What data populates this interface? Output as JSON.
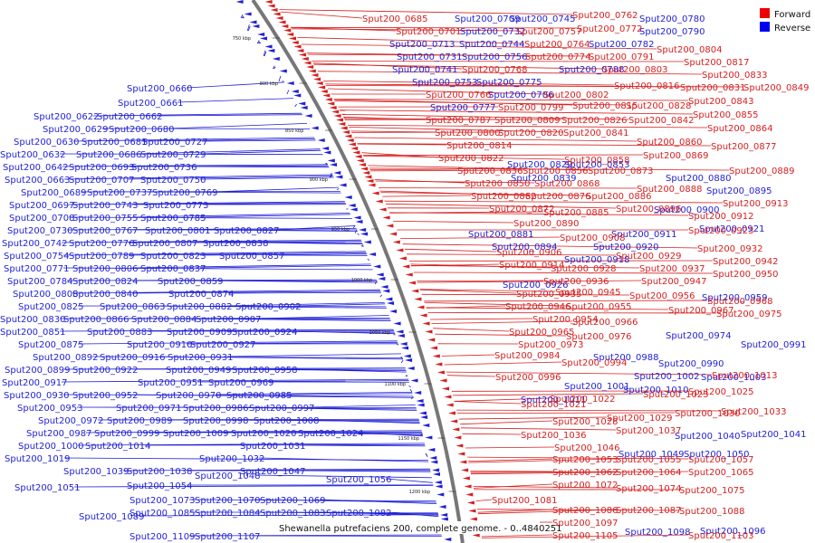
{
  "caption": "Shewanella putrefaciens 200, complete genome. - 0..4840251",
  "legend": [
    {
      "label": "Forward",
      "color": "#ee0000"
    },
    {
      "label": "Reverse",
      "color": "#0000ee"
    }
  ],
  "colors": {
    "forward": "#d61f1f",
    "reverse": "#1f1fd6",
    "backbone": "#888888"
  },
  "ticks": [
    "750 kbp",
    "800 kbp",
    "850 kbp",
    "900 kbp",
    "950 kbp",
    "1000 kbp",
    "1050 kbp",
    "1100 kbp",
    "1150 kbp",
    "1200 kbp"
  ],
  "reverse_labels": [
    [
      "Sput200_0660",
      140,
      101
    ],
    [
      "Sput200_0661",
      130,
      117
    ],
    [
      "Sput200_0622",
      37,
      132
    ],
    [
      "Sput200_0662",
      107,
      132
    ],
    [
      "Sput200_0629",
      47,
      146
    ],
    [
      "Sput200_0680",
      120,
      146
    ],
    [
      "Sput200_0630",
      15,
      160
    ],
    [
      "Sput200_0681",
      90,
      160
    ],
    [
      "Sput200_0727",
      157,
      160
    ],
    [
      "Sput200_0632",
      0,
      174
    ],
    [
      "Sput200_0686",
      84,
      174
    ],
    [
      "Sput200_0729",
      155,
      174
    ],
    [
      "Sput200_0642",
      3,
      188
    ],
    [
      "Sput200_0693",
      76,
      188
    ],
    [
      "Sput200_0736",
      145,
      188
    ],
    [
      "Sput200_0663",
      5,
      202
    ],
    [
      "Sput200_0707",
      76,
      202
    ],
    [
      "Sput200_0750",
      155,
      202
    ],
    [
      "Sput200_0689",
      23,
      216
    ],
    [
      "Sput200_0737",
      96,
      216
    ],
    [
      "Sput200_0769",
      168,
      216
    ],
    [
      "Sput200_0697",
      10,
      230
    ],
    [
      "Sput200_0743",
      80,
      230
    ],
    [
      "Sput200_0773",
      158,
      230
    ],
    [
      "Sput200_0708",
      10,
      244
    ],
    [
      "Sput200_0755",
      80,
      244
    ],
    [
      "Sput200_0785",
      155,
      244
    ],
    [
      "Sput200_0730",
      8,
      258
    ],
    [
      "Sput200_0767",
      80,
      258
    ],
    [
      "Sput200_0801",
      160,
      258
    ],
    [
      "Sput200_0827",
      236,
      258
    ],
    [
      "Sput200_0742",
      2,
      272
    ],
    [
      "Sput200_0776",
      76,
      272
    ],
    [
      "Sput200_0807",
      146,
      272
    ],
    [
      "Sput200_0838",
      224,
      272
    ],
    [
      "Sput200_0754",
      4,
      286
    ],
    [
      "Sput200_0789",
      76,
      286
    ],
    [
      "Sput200_0823",
      155,
      286
    ],
    [
      "Sput200_0857",
      242,
      286
    ],
    [
      "Sput200_0771",
      4,
      300
    ],
    [
      "Sput200_0806",
      80,
      300
    ],
    [
      "Sput200_0837",
      155,
      300
    ],
    [
      "Sput200_0784",
      8,
      314
    ],
    [
      "Sput200_0824",
      80,
      314
    ],
    [
      "Sput200_0859",
      174,
      314
    ],
    [
      "Sput200_0808",
      14,
      328
    ],
    [
      "Sput200_0840",
      80,
      328
    ],
    [
      "Sput200_0874",
      186,
      328
    ],
    [
      "Sput200_0825",
      20,
      342
    ],
    [
      "Sput200_0863",
      110,
      342
    ],
    [
      "Sput200_0882",
      184,
      342
    ],
    [
      "Sput200_0902",
      260,
      342
    ],
    [
      "Sput200_0830",
      0,
      356
    ],
    [
      "Sput200_0866",
      70,
      356
    ],
    [
      "Sput200_0884",
      145,
      356
    ],
    [
      "Sput200_0907",
      216,
      356
    ],
    [
      "Sput200_0851",
      0,
      370
    ],
    [
      "Sput200_0883",
      96,
      370
    ],
    [
      "Sput200_0909",
      184,
      370
    ],
    [
      "Sput200_0924",
      256,
      370
    ],
    [
      "Sput200_0875",
      20,
      384
    ],
    [
      "Sput200_0910",
      140,
      384
    ],
    [
      "Sput200_0927",
      210,
      384
    ],
    [
      "Sput200_0892",
      36,
      398
    ],
    [
      "Sput200_0916",
      110,
      398
    ],
    [
      "Sput200_0931",
      185,
      398
    ],
    [
      "Sput200_0899",
      5,
      412
    ],
    [
      "Sput200_0922",
      80,
      412
    ],
    [
      "Sput200_0949",
      183,
      412
    ],
    [
      "Sput200_0958",
      256,
      412
    ],
    [
      "Sput200_0917",
      2,
      426
    ],
    [
      "Sput200_0951",
      152,
      426
    ],
    [
      "Sput200_0969",
      230,
      426
    ],
    [
      "Sput200_0930",
      4,
      440
    ],
    [
      "Sput200_0952",
      80,
      440
    ],
    [
      "Sput200_0970",
      172,
      440
    ],
    [
      "Sput200_0985",
      250,
      440
    ],
    [
      "Sput200_0953",
      19,
      454
    ],
    [
      "Sput200_0971",
      128,
      454
    ],
    [
      "Sput200_0986",
      202,
      454
    ],
    [
      "Sput200_0997",
      275,
      454
    ],
    [
      "Sput200_0972",
      42,
      468
    ],
    [
      "Sput200_0989",
      118,
      468
    ],
    [
      "Sput200_0998",
      202,
      468
    ],
    [
      "Sput200_1008",
      280,
      468
    ],
    [
      "Sput200_0987",
      29,
      482
    ],
    [
      "Sput200_0999",
      104,
      482
    ],
    [
      "Sput200_1009",
      180,
      482
    ],
    [
      "Sput200_1020",
      255,
      482
    ],
    [
      "Sput200_1024",
      329,
      482
    ],
    [
      "Sput200_1000",
      20,
      496
    ],
    [
      "Sput200_1014",
      94,
      496
    ],
    [
      "Sput200_1031",
      265,
      496
    ],
    [
      "Sput200_1019",
      5,
      510
    ],
    [
      "Sput200_1032",
      220,
      510
    ],
    [
      "Sput200_1039",
      70,
      524
    ],
    [
      "Sput200_1038",
      140,
      524
    ],
    [
      "Sput200_1047",
      265,
      524
    ],
    [
      "Sput200_1048",
      215,
      529
    ],
    [
      "Sput200_1056",
      360,
      533
    ],
    [
      "Sput200_1051",
      16,
      542
    ],
    [
      "Sput200_1054",
      140,
      540
    ],
    [
      "Sput200_1073",
      143,
      556
    ],
    [
      "Sput200_1070",
      215,
      556
    ],
    [
      "Sput200_1069",
      287,
      556
    ],
    [
      "Sput200_1089",
      87,
      574
    ],
    [
      "Sput200_1085",
      143,
      570
    ],
    [
      "Sput200_1084",
      215,
      570
    ],
    [
      "Sput200_1083",
      287,
      570
    ],
    [
      "Sput200_1082",
      360,
      570
    ],
    [
      "Sput200_1109",
      143,
      596
    ],
    [
      "Sput200_1107",
      215,
      596
    ],
    [
      "Sput200_0709",
      502,
      24
    ],
    [
      "Sput200_0745",
      563,
      24
    ],
    [
      "Sput200_0780",
      706,
      24
    ],
    [
      "Sput200_0732",
      508,
      38
    ],
    [
      "Sput200_0790",
      706,
      38
    ],
    [
      "Sput200_0713",
      430,
      52
    ],
    [
      "Sput200_0744",
      507,
      52
    ],
    [
      "Sput200_0782",
      650,
      52
    ],
    [
      "Sput200_0731",
      438,
      66
    ],
    [
      "Sput200_0756",
      510,
      66
    ],
    [
      "Sput200_0741",
      433,
      80
    ],
    [
      "Sput200_0788",
      617,
      80
    ],
    [
      "Sput200_0753",
      455,
      94
    ],
    [
      "Sput200_0775",
      526,
      94
    ],
    [
      "Sput200_0786",
      539,
      108
    ],
    [
      "Sput200_0777",
      475,
      122
    ],
    [
      "Sput200_0829",
      560,
      185
    ],
    [
      "Sput200_0853",
      623,
      185
    ],
    [
      "Sput200_0839",
      564,
      200
    ],
    [
      "Sput200_0880",
      735,
      200
    ],
    [
      "Sput200_0895",
      780,
      214
    ],
    [
      "Sput200_0900",
      722,
      235
    ],
    [
      "Sput200_0881",
      517,
      262
    ],
    [
      "Sput200_0911",
      675,
      262
    ],
    [
      "Sput200_0921",
      772,
      256
    ],
    [
      "Sput200_0920",
      655,
      276
    ],
    [
      "Sput200_0894",
      543,
      276
    ],
    [
      "Sput200_0918",
      623,
      290
    ],
    [
      "Sput200_0926",
      555,
      318
    ],
    [
      "Sput200_0959",
      775,
      332
    ],
    [
      "Sput200_0974",
      735,
      374
    ],
    [
      "Sput200_0991",
      818,
      384
    ],
    [
      "Sput200_0988",
      655,
      398
    ],
    [
      "Sput200_0990",
      727,
      405
    ],
    [
      "Sput200_1003",
      774,
      420
    ],
    [
      "Sput200_1002",
      700,
      419
    ],
    [
      "Sput200_1001",
      623,
      430
    ],
    [
      "Sput200_1010",
      688,
      434
    ],
    [
      "Sput200_1011",
      575,
      445
    ],
    [
      "Sput200_1040",
      745,
      485
    ],
    [
      "Sput200_1041",
      818,
      483
    ],
    [
      "Sput200_1049",
      683,
      505
    ],
    [
      "Sput200_1050",
      755,
      505
    ],
    [
      "Sput200_1096",
      773,
      590
    ],
    [
      "Sput200_1098",
      690,
      591
    ]
  ],
  "forward_labels": [
    [
      "Sput200_0685",
      400,
      24
    ],
    [
      "Sput200_0762",
      632,
      20
    ],
    [
      "Sput200_0701",
      437,
      38
    ],
    [
      "Sput200_0757",
      570,
      38
    ],
    [
      "Sput200_0772",
      637,
      35
    ],
    [
      "Sput200_0764",
      579,
      52
    ],
    [
      "Sput200_0804",
      725,
      58
    ],
    [
      "Sput200_0774",
      580,
      66
    ],
    [
      "Sput200_0791",
      650,
      66
    ],
    [
      "Sput200_0817",
      755,
      72
    ],
    [
      "Sput200_0768",
      510,
      80
    ],
    [
      "Sput200_0803",
      665,
      80
    ],
    [
      "Sput200_0833",
      775,
      86
    ],
    [
      "Sput200_0849",
      821,
      100
    ],
    [
      "Sput200_0766",
      470,
      108
    ],
    [
      "Sput200_0802",
      600,
      108
    ],
    [
      "Sput200_0816",
      678,
      98
    ],
    [
      "Sput200_0831",
      751,
      100
    ],
    [
      "Sput200_0843",
      760,
      115
    ],
    [
      "Sput200_0799",
      550,
      122
    ],
    [
      "Sput200_0815",
      632,
      120
    ],
    [
      "Sput200_0828",
      691,
      120
    ],
    [
      "Sput200_0787",
      470,
      136
    ],
    [
      "Sput200_0809",
      546,
      136
    ],
    [
      "Sput200_0826",
      620,
      136
    ],
    [
      "Sput200_0842",
      694,
      136
    ],
    [
      "Sput200_0855",
      765,
      130
    ],
    [
      "Sput200_0864",
      781,
      145
    ],
    [
      "Sput200_0800",
      480,
      150
    ],
    [
      "Sput200_0820",
      550,
      150
    ],
    [
      "Sput200_0841",
      622,
      150
    ],
    [
      "Sput200_0860",
      703,
      160
    ],
    [
      "Sput200_0877",
      785,
      165
    ],
    [
      "Sput200_0814",
      493,
      164
    ],
    [
      "Sput200_0869",
      710,
      175
    ],
    [
      "Sput200_0822",
      484,
      178
    ],
    [
      "Sput200_0858",
      623,
      180
    ],
    [
      "Sput200_0889",
      805,
      192
    ],
    [
      "Sput200_0836",
      505,
      192
    ],
    [
      "Sput200_0856",
      577,
      192
    ],
    [
      "Sput200_0873",
      649,
      192
    ],
    [
      "Sput200_0850",
      513,
      206
    ],
    [
      "Sput200_0868",
      590,
      206
    ],
    [
      "Sput200_0888",
      703,
      212
    ],
    [
      "Sput200_0862",
      520,
      220
    ],
    [
      "Sput200_0876",
      580,
      220
    ],
    [
      "Sput200_0886",
      647,
      220
    ],
    [
      "Sput200_0913",
      798,
      228
    ],
    [
      "Sput200_0872",
      540,
      234
    ],
    [
      "Sput200_0885",
      600,
      238
    ],
    [
      "Sput200_0896",
      680,
      234
    ],
    [
      "Sput200_0912",
      760,
      242
    ],
    [
      "Sput200_0890",
      567,
      250
    ],
    [
      "Sput200_0923",
      760,
      258
    ],
    [
      "Sput200_0908",
      618,
      266
    ],
    [
      "Sput200_0932",
      770,
      278
    ],
    [
      "Sput200_0906",
      548,
      282
    ],
    [
      "Sput200_0929",
      680,
      286
    ],
    [
      "Sput200_0942",
      787,
      292
    ],
    [
      "Sput200_0914",
      551,
      296
    ],
    [
      "Sput200_0928",
      608,
      300
    ],
    [
      "Sput200_0937",
      706,
      300
    ],
    [
      "Sput200_0950",
      787,
      306
    ],
    [
      "Sput200_0936",
      600,
      314
    ],
    [
      "Sput200_0947",
      708,
      314
    ],
    [
      "Sput200_0935",
      570,
      328
    ],
    [
      "Sput200_0945",
      613,
      326
    ],
    [
      "Sput200_0956",
      695,
      330
    ],
    [
      "Sput200_0968",
      781,
      336
    ],
    [
      "Sput200_0946",
      558,
      342
    ],
    [
      "Sput200_0955",
      625,
      342
    ],
    [
      "Sput200_0967",
      738,
      346
    ],
    [
      "Sput200_0975",
      791,
      350
    ],
    [
      "Sput200_0954",
      588,
      356
    ],
    [
      "Sput200_0966",
      632,
      359
    ],
    [
      "Sput200_0965",
      562,
      370
    ],
    [
      "Sput200_0976",
      625,
      375
    ],
    [
      "Sput200_0973",
      572,
      384
    ],
    [
      "Sput200_0984",
      546,
      396
    ],
    [
      "Sput200_0994",
      620,
      404
    ],
    [
      "Sput200_1013",
      786,
      418
    ],
    [
      "Sput200_0996",
      547,
      420
    ],
    [
      "Sput200_1025",
      760,
      436
    ],
    [
      "Sput200_1023",
      710,
      439
    ],
    [
      "Sput200_1022",
      607,
      444
    ],
    [
      "Sput200_1021",
      575,
      450
    ],
    [
      "Sput200_1033",
      796,
      458
    ],
    [
      "Sput200_1030",
      745,
      460
    ],
    [
      "Sput200_1029",
      670,
      465
    ],
    [
      "Sput200_1028",
      610,
      469
    ],
    [
      "Sput200_1037",
      680,
      479
    ],
    [
      "Sput200_1036",
      575,
      484
    ],
    [
      "Sput200_1046",
      612,
      498
    ],
    [
      "Sput200_1053",
      610,
      511
    ],
    [
      "Sput200_1055",
      680,
      511
    ],
    [
      "Sput200_1057",
      760,
      511
    ],
    [
      "Sput200_1062",
      610,
      525
    ],
    [
      "Sput200_1064",
      680,
      525
    ],
    [
      "Sput200_1065",
      760,
      525
    ],
    [
      "Sput200_1072",
      610,
      539
    ],
    [
      "Sput200_1074",
      680,
      543
    ],
    [
      "Sput200_1075",
      750,
      545
    ],
    [
      "Sput200_1081",
      543,
      556
    ],
    [
      "Sput200_1086",
      610,
      567
    ],
    [
      "Sput200_1087",
      680,
      567
    ],
    [
      "Sput200_1088",
      750,
      568
    ],
    [
      "Sput200_1097",
      610,
      581
    ],
    [
      "Sput200_1105",
      610,
      595
    ],
    [
      "Sput200_1103",
      760,
      595
    ]
  ]
}
